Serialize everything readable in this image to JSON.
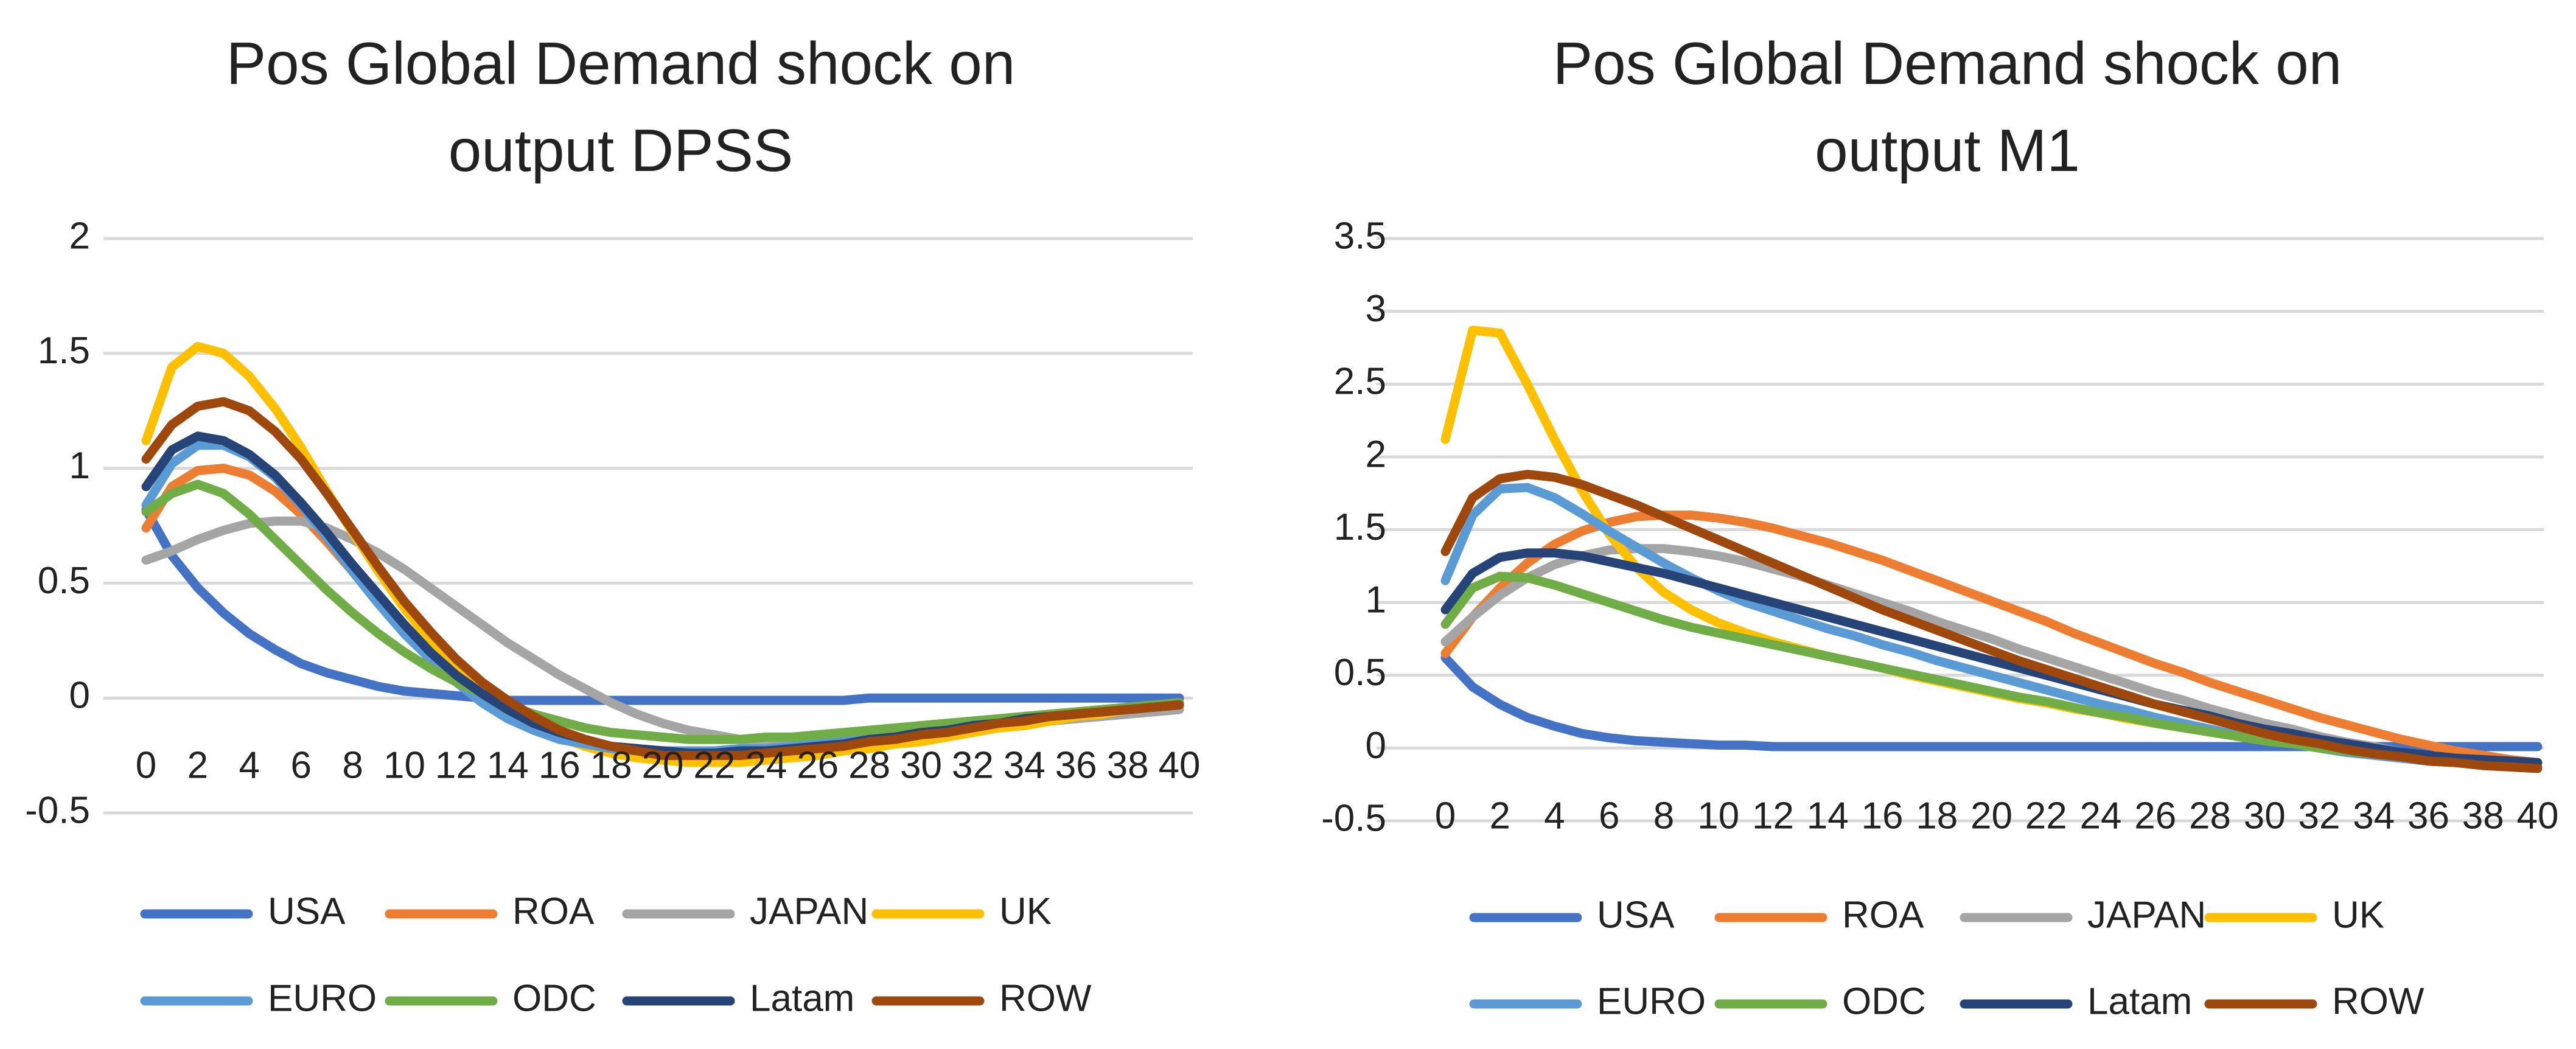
{
  "chart_data": [
    {
      "type": "line",
      "title_lines": [
        "Pos Global Demand shock on",
        "output DPSS"
      ],
      "xlabel": "",
      "ylabel": "",
      "ylim": [
        -0.5,
        2
      ],
      "y_ticks": [
        "2",
        "1.5",
        "1",
        "0.5",
        "0",
        "-0.5"
      ],
      "y_tick_values": [
        2,
        1.5,
        1,
        0.5,
        0,
        -0.5
      ],
      "x": [
        0,
        1,
        2,
        3,
        4,
        5,
        6,
        7,
        8,
        9,
        10,
        11,
        12,
        13,
        14,
        15,
        16,
        17,
        18,
        19,
        20,
        21,
        22,
        23,
        24,
        25,
        26,
        27,
        28,
        29,
        30,
        31,
        32,
        33,
        34,
        35,
        36,
        37,
        38,
        39,
        40
      ],
      "x_ticks": [
        "0",
        "2",
        "4",
        "6",
        "8",
        "10",
        "12",
        "14",
        "16",
        "18",
        "20",
        "22",
        "24",
        "26",
        "28",
        "30",
        "32",
        "34",
        "36",
        "38",
        "40"
      ],
      "grid": true,
      "legend_position": "bottom",
      "series": [
        {
          "name": "USA",
          "color": "#4472C4",
          "values": [
            0.82,
            0.62,
            0.48,
            0.37,
            0.28,
            0.21,
            0.15,
            0.11,
            0.08,
            0.05,
            0.03,
            0.02,
            0.01,
            0.0,
            -0.01,
            -0.01,
            -0.01,
            -0.01,
            -0.01,
            -0.01,
            -0.01,
            -0.01,
            -0.01,
            -0.01,
            -0.01,
            -0.01,
            -0.01,
            -0.01,
            0.0,
            0.0,
            0.0,
            0.0,
            0.0,
            0.0,
            0.0,
            0.0,
            0.0,
            0.0,
            0.0,
            0.0,
            0.0
          ]
        },
        {
          "name": "ROA",
          "color": "#ED7D31",
          "values": [
            0.74,
            0.92,
            0.99,
            1.0,
            0.97,
            0.9,
            0.8,
            0.68,
            0.55,
            0.43,
            0.31,
            0.2,
            0.1,
            0.02,
            -0.06,
            -0.12,
            -0.17,
            -0.21,
            -0.24,
            -0.26,
            -0.27,
            -0.27,
            -0.27,
            -0.27,
            -0.26,
            -0.25,
            -0.24,
            -0.23,
            -0.21,
            -0.2,
            -0.18,
            -0.16,
            -0.14,
            -0.13,
            -0.11,
            -0.09,
            -0.08,
            -0.06,
            -0.05,
            -0.04,
            -0.03
          ]
        },
        {
          "name": "JAPAN",
          "color": "#A5A5A5",
          "values": [
            0.6,
            0.64,
            0.69,
            0.73,
            0.76,
            0.77,
            0.77,
            0.74,
            0.69,
            0.63,
            0.56,
            0.48,
            0.4,
            0.32,
            0.24,
            0.17,
            0.1,
            0.04,
            -0.02,
            -0.07,
            -0.11,
            -0.14,
            -0.16,
            -0.18,
            -0.18,
            -0.19,
            -0.18,
            -0.18,
            -0.17,
            -0.16,
            -0.15,
            -0.14,
            -0.13,
            -0.12,
            -0.11,
            -0.1,
            -0.09,
            -0.08,
            -0.07,
            -0.06,
            -0.05
          ]
        },
        {
          "name": "UK",
          "color": "#FFC000",
          "values": [
            1.12,
            1.44,
            1.53,
            1.5,
            1.4,
            1.26,
            1.09,
            0.9,
            0.72,
            0.55,
            0.39,
            0.25,
            0.13,
            0.03,
            -0.05,
            -0.12,
            -0.17,
            -0.21,
            -0.24,
            -0.26,
            -0.27,
            -0.28,
            -0.28,
            -0.28,
            -0.27,
            -0.26,
            -0.25,
            -0.23,
            -0.22,
            -0.2,
            -0.19,
            -0.17,
            -0.15,
            -0.13,
            -0.12,
            -0.1,
            -0.08,
            -0.07,
            -0.05,
            -0.04,
            -0.03
          ]
        },
        {
          "name": "EURO",
          "color": "#5B9BD5",
          "values": [
            0.84,
            1.02,
            1.1,
            1.1,
            1.05,
            0.96,
            0.84,
            0.7,
            0.55,
            0.41,
            0.28,
            0.17,
            0.07,
            -0.02,
            -0.09,
            -0.14,
            -0.18,
            -0.2,
            -0.22,
            -0.23,
            -0.23,
            -0.23,
            -0.23,
            -0.22,
            -0.22,
            -0.21,
            -0.2,
            -0.19,
            -0.17,
            -0.16,
            -0.15,
            -0.13,
            -0.12,
            -0.11,
            -0.09,
            -0.08,
            -0.07,
            -0.06,
            -0.05,
            -0.04,
            -0.03
          ]
        },
        {
          "name": "ODC",
          "color": "#70AD47",
          "values": [
            0.81,
            0.89,
            0.93,
            0.89,
            0.8,
            0.69,
            0.58,
            0.47,
            0.37,
            0.28,
            0.2,
            0.13,
            0.07,
            0.02,
            -0.03,
            -0.07,
            -0.1,
            -0.13,
            -0.15,
            -0.16,
            -0.17,
            -0.18,
            -0.18,
            -0.18,
            -0.17,
            -0.17,
            -0.16,
            -0.15,
            -0.14,
            -0.13,
            -0.12,
            -0.11,
            -0.1,
            -0.09,
            -0.08,
            -0.07,
            -0.06,
            -0.05,
            -0.04,
            -0.03,
            -0.02
          ]
        },
        {
          "name": "Latam",
          "color": "#264478",
          "values": [
            0.92,
            1.08,
            1.14,
            1.12,
            1.06,
            0.97,
            0.85,
            0.72,
            0.58,
            0.45,
            0.32,
            0.2,
            0.1,
            0.02,
            -0.05,
            -0.11,
            -0.15,
            -0.18,
            -0.21,
            -0.22,
            -0.23,
            -0.24,
            -0.24,
            -0.23,
            -0.23,
            -0.22,
            -0.21,
            -0.2,
            -0.18,
            -0.17,
            -0.15,
            -0.14,
            -0.12,
            -0.11,
            -0.09,
            -0.08,
            -0.07,
            -0.06,
            -0.05,
            -0.04,
            -0.03
          ]
        },
        {
          "name": "ROW",
          "color": "#9E480E",
          "values": [
            1.04,
            1.19,
            1.27,
            1.29,
            1.25,
            1.16,
            1.04,
            0.89,
            0.73,
            0.57,
            0.42,
            0.29,
            0.17,
            0.07,
            -0.01,
            -0.08,
            -0.14,
            -0.18,
            -0.21,
            -0.23,
            -0.25,
            -0.25,
            -0.25,
            -0.25,
            -0.24,
            -0.23,
            -0.22,
            -0.21,
            -0.19,
            -0.18,
            -0.16,
            -0.15,
            -0.13,
            -0.11,
            -0.1,
            -0.08,
            -0.07,
            -0.06,
            -0.05,
            -0.04,
            -0.03
          ]
        }
      ]
    },
    {
      "type": "line",
      "title_lines": [
        "Pos Global Demand shock on",
        "output M1"
      ],
      "xlabel": "",
      "ylabel": "",
      "ylim": [
        -0.5,
        3.5
      ],
      "y_ticks": [
        "3.5",
        "3",
        "2.5",
        "2",
        "1.5",
        "1",
        "0.5",
        "0",
        "-0.5"
      ],
      "y_tick_values": [
        3.5,
        3,
        2.5,
        2,
        1.5,
        1,
        0.5,
        0,
        -0.5
      ],
      "x": [
        0,
        1,
        2,
        3,
        4,
        5,
        6,
        7,
        8,
        9,
        10,
        11,
        12,
        13,
        14,
        15,
        16,
        17,
        18,
        19,
        20,
        21,
        22,
        23,
        24,
        25,
        26,
        27,
        28,
        29,
        30,
        31,
        32,
        33,
        34,
        35,
        36,
        37,
        38,
        39,
        40
      ],
      "x_ticks": [
        "0",
        "2",
        "4",
        "6",
        "8",
        "10",
        "12",
        "14",
        "16",
        "18",
        "20",
        "22",
        "24",
        "26",
        "28",
        "30",
        "32",
        "34",
        "36",
        "38",
        "40"
      ],
      "grid": true,
      "legend_position": "bottom",
      "series": [
        {
          "name": "USA",
          "color": "#4472C4",
          "values": [
            0.62,
            0.42,
            0.3,
            0.21,
            0.15,
            0.1,
            0.07,
            0.05,
            0.04,
            0.03,
            0.02,
            0.02,
            0.01,
            0.01,
            0.01,
            0.01,
            0.01,
            0.01,
            0.01,
            0.01,
            0.01,
            0.01,
            0.01,
            0.01,
            0.01,
            0.01,
            0.01,
            0.01,
            0.01,
            0.01,
            0.01,
            0.01,
            0.01,
            0.01,
            0.01,
            0.01,
            0.01,
            0.01,
            0.01,
            0.01,
            0.01
          ]
        },
        {
          "name": "ROA",
          "color": "#ED7D31",
          "values": [
            0.65,
            0.9,
            1.1,
            1.27,
            1.4,
            1.49,
            1.55,
            1.59,
            1.6,
            1.6,
            1.58,
            1.55,
            1.51,
            1.46,
            1.41,
            1.35,
            1.29,
            1.22,
            1.15,
            1.08,
            1.01,
            0.94,
            0.87,
            0.79,
            0.72,
            0.65,
            0.58,
            0.52,
            0.45,
            0.39,
            0.33,
            0.27,
            0.21,
            0.16,
            0.11,
            0.06,
            0.02,
            -0.02,
            -0.05,
            -0.08,
            -0.1
          ]
        },
        {
          "name": "JAPAN",
          "color": "#A5A5A5",
          "values": [
            0.73,
            0.9,
            1.05,
            1.17,
            1.26,
            1.32,
            1.36,
            1.37,
            1.37,
            1.35,
            1.32,
            1.28,
            1.23,
            1.18,
            1.12,
            1.06,
            1.0,
            0.94,
            0.87,
            0.81,
            0.75,
            0.68,
            0.62,
            0.56,
            0.5,
            0.44,
            0.38,
            0.33,
            0.27,
            0.22,
            0.17,
            0.13,
            0.08,
            0.04,
            0.01,
            -0.03,
            -0.06,
            -0.08,
            -0.1,
            -0.12,
            -0.13
          ]
        },
        {
          "name": "UK",
          "color": "#FFC000",
          "values": [
            2.12,
            2.87,
            2.85,
            2.5,
            2.12,
            1.77,
            1.47,
            1.24,
            1.07,
            0.95,
            0.86,
            0.79,
            0.73,
            0.68,
            0.63,
            0.59,
            0.55,
            0.5,
            0.46,
            0.42,
            0.38,
            0.34,
            0.31,
            0.27,
            0.24,
            0.2,
            0.17,
            0.14,
            0.11,
            0.08,
            0.05,
            0.03,
            0.0,
            -0.02,
            -0.04,
            -0.06,
            -0.08,
            -0.1,
            -0.11,
            -0.12,
            -0.13
          ]
        },
        {
          "name": "EURO",
          "color": "#5B9BD5",
          "values": [
            1.15,
            1.6,
            1.78,
            1.79,
            1.72,
            1.61,
            1.49,
            1.38,
            1.27,
            1.17,
            1.08,
            1.0,
            0.94,
            0.88,
            0.82,
            0.77,
            0.71,
            0.66,
            0.6,
            0.55,
            0.5,
            0.45,
            0.4,
            0.35,
            0.3,
            0.26,
            0.21,
            0.17,
            0.13,
            0.09,
            0.06,
            0.03,
            0.0,
            -0.03,
            -0.05,
            -0.07,
            -0.09,
            -0.1,
            -0.11,
            -0.12,
            -0.13
          ]
        },
        {
          "name": "ODC",
          "color": "#70AD47",
          "values": [
            0.85,
            1.1,
            1.18,
            1.17,
            1.12,
            1.06,
            1.0,
            0.94,
            0.88,
            0.83,
            0.79,
            0.75,
            0.71,
            0.67,
            0.63,
            0.59,
            0.55,
            0.51,
            0.47,
            0.43,
            0.39,
            0.35,
            0.32,
            0.28,
            0.24,
            0.21,
            0.17,
            0.14,
            0.11,
            0.08,
            0.05,
            0.03,
            0.0,
            -0.02,
            -0.04,
            -0.06,
            -0.08,
            -0.09,
            -0.11,
            -0.12,
            -0.13
          ]
        },
        {
          "name": "Latam",
          "color": "#264478",
          "values": [
            0.95,
            1.2,
            1.31,
            1.34,
            1.34,
            1.32,
            1.28,
            1.24,
            1.2,
            1.15,
            1.1,
            1.05,
            1.0,
            0.95,
            0.9,
            0.85,
            0.8,
            0.75,
            0.7,
            0.65,
            0.6,
            0.55,
            0.5,
            0.45,
            0.4,
            0.35,
            0.3,
            0.26,
            0.22,
            0.17,
            0.13,
            0.1,
            0.06,
            0.03,
            0.0,
            -0.03,
            -0.05,
            -0.07,
            -0.08,
            -0.09,
            -0.1
          ]
        },
        {
          "name": "ROW",
          "color": "#9E480E",
          "values": [
            1.35,
            1.72,
            1.85,
            1.88,
            1.86,
            1.81,
            1.74,
            1.67,
            1.59,
            1.51,
            1.43,
            1.35,
            1.27,
            1.19,
            1.11,
            1.03,
            0.95,
            0.88,
            0.81,
            0.74,
            0.67,
            0.6,
            0.54,
            0.48,
            0.42,
            0.36,
            0.3,
            0.25,
            0.2,
            0.15,
            0.1,
            0.06,
            0.03,
            -0.01,
            -0.04,
            -0.06,
            -0.09,
            -0.1,
            -0.12,
            -0.13,
            -0.14
          ]
        }
      ]
    }
  ]
}
